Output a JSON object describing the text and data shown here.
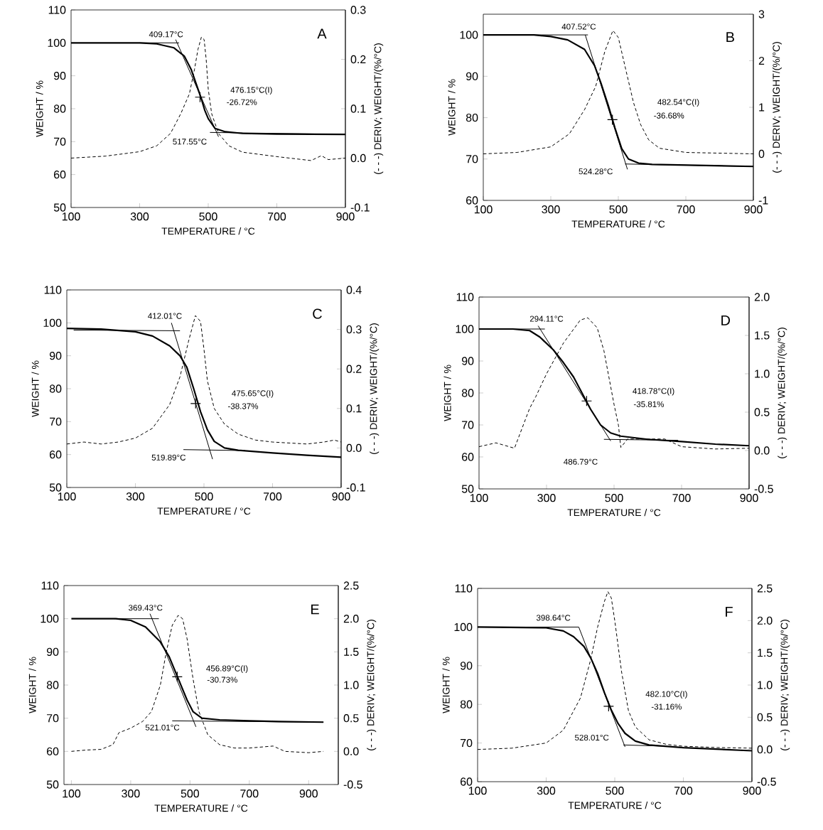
{
  "chart_data": [
    {
      "type": "line",
      "xlabel": "TEMPERATURE / °C",
      "ylabel": "WEIGHT / %",
      "y2label": "(- - -) DERIV; WEIGHT/(%/°C)",
      "xlim": [
        100,
        900
      ],
      "xticks": [
        100,
        300,
        500,
        700,
        900
      ],
      "ylim": [
        50,
        110
      ],
      "yticks": [
        50,
        60,
        70,
        80,
        90,
        100,
        110
      ],
      "y2lim": [
        -0.1,
        0.3
      ],
      "y2ticks": [
        -0.1,
        {
          "value": 0,
          "label": "0.0"
        },
        0.1,
        0.2,
        0.3
      ],
      "series": [
        {
          "color": "#000000",
          "line_style": "solid",
          "x": [
            100,
            200,
            300,
            350,
            400,
            430,
            450,
            470,
            480,
            490,
            500,
            520,
            550,
            600,
            700,
            900
          ],
          "values": [
            100,
            100,
            100,
            99.7,
            98.5,
            96,
            92,
            86,
            83,
            79.5,
            77,
            74,
            73,
            72.5,
            72.3,
            72.2
          ]
        },
        {
          "axis": "y2",
          "color": "#000000",
          "line_style": "dashed",
          "x": [
            100,
            200,
            300,
            350,
            390,
            420,
            445,
            460,
            470,
            480,
            488,
            494,
            500,
            510,
            530,
            560,
            600,
            700,
            800,
            830,
            850,
            900
          ],
          "values": [
            0,
            0.004,
            0.013,
            0.025,
            0.05,
            0.09,
            0.13,
            0.18,
            0.22,
            0.245,
            0.24,
            0.2,
            0.14,
            0.09,
            0.05,
            0.025,
            0.012,
            0.003,
            -0.005,
            0.005,
            -0.003,
            0
          ]
        },
        {
          "color": "#000000",
          "line_style": "solid",
          "x": [
            300,
            415
          ],
          "values": [
            100,
            100
          ]
        },
        {
          "color": "#000000",
          "line_style": "solid",
          "x": [
            405,
            530
          ],
          "values": [
            101,
            71.5
          ]
        },
        {
          "color": "#000000",
          "line_style": "solid",
          "x": [
            505,
            900
          ],
          "values": [
            72.8,
            72.2
          ]
        },
        {
          "type": "scatter",
          "marker": "cross",
          "color": "#000000",
          "x": [
            476.15
          ],
          "values": [
            83.5
          ]
        }
      ],
      "annotations": [
        "409.17°C",
        "476.15°C(I)",
        "-26.72%",
        "517.55°C",
        "A"
      ]
    },
    {
      "type": "line",
      "xlabel": "TEMPERATURE / °C",
      "ylabel": "WEIGHT / %",
      "y2label": "(- - -) DERIV; WEIGHT/(%/°C)",
      "xlim": [
        100,
        900
      ],
      "xticks": [
        100,
        300,
        500,
        700,
        900
      ],
      "ylim": [
        60,
        105
      ],
      "yticks": [
        60,
        70,
        80,
        90,
        100
      ],
      "y2lim": [
        -1,
        3
      ],
      "y2ticks": [
        -1,
        0,
        1,
        2,
        3
      ],
      "series": [
        {
          "color": "#000000",
          "line_style": "solid",
          "x": [
            100,
            250,
            300,
            350,
            400,
            430,
            450,
            470,
            490,
            510,
            530,
            560,
            600,
            900
          ],
          "values": [
            100,
            100,
            99.6,
            98.8,
            96.5,
            92.5,
            88,
            83,
            77.5,
            72.5,
            70,
            69,
            68.7,
            68.2
          ]
        },
        {
          "axis": "y2",
          "color": "#000000",
          "line_style": "dashed",
          "x": [
            100,
            200,
            300,
            355,
            400,
            433,
            460,
            484,
            500,
            524,
            545,
            566,
            590,
            622,
            700,
            900
          ],
          "values": [
            0,
            0.03,
            0.15,
            0.43,
            0.95,
            1.45,
            2.2,
            2.65,
            2.5,
            1.75,
            1.1,
            0.63,
            0.3,
            0.12,
            0.03,
            0
          ]
        },
        {
          "color": "#000000",
          "line_style": "solid",
          "x": [
            200,
            410
          ],
          "values": [
            100,
            100
          ]
        },
        {
          "color": "#000000",
          "line_style": "solid",
          "x": [
            402,
            527
          ],
          "values": [
            100,
            67.5
          ]
        },
        {
          "color": "#000000",
          "line_style": "solid",
          "x": [
            520,
            900
          ],
          "values": [
            68.8,
            68.2
          ]
        },
        {
          "type": "scatter",
          "marker": "cross",
          "color": "#000000",
          "x": [
            482.54
          ],
          "values": [
            79.5
          ]
        }
      ],
      "annotations": [
        "407.52°C",
        "482.54°C(I)",
        "-36.68%",
        "524.28°C",
        "B"
      ]
    },
    {
      "type": "line",
      "xlabel": "TEMPERATURE / °C",
      "ylabel": "WEIGHT / %",
      "y2label": "(- - -) DERIV; WEIGHT/(%/°C)",
      "xlim": [
        100,
        900
      ],
      "xticks": [
        100,
        300,
        500,
        700,
        900
      ],
      "ylim": [
        50,
        110
      ],
      "yticks": [
        50,
        60,
        70,
        80,
        90,
        100,
        110
      ],
      "y2lim": [
        -0.1,
        0.4
      ],
      "y2ticks": [
        -0.1,
        {
          "value": 0,
          "label": "0.0"
        },
        0.1,
        0.2,
        0.3,
        0.4
      ],
      "series": [
        {
          "color": "#000000",
          "line_style": "solid",
          "x": [
            100,
            200,
            300,
            350,
            400,
            430,
            450,
            470,
            490,
            510,
            530,
            560,
            600,
            700,
            800,
            900
          ],
          "values": [
            98.3,
            98.1,
            97.3,
            96,
            93,
            90,
            86.5,
            80,
            73,
            67.5,
            64,
            62,
            61.3,
            60.5,
            59.8,
            59.2
          ]
        },
        {
          "axis": "y2",
          "color": "#000000",
          "line_style": "dashed",
          "x": [
            100,
            150,
            200,
            250,
            300,
            350,
            400,
            430,
            455,
            475,
            490,
            500,
            510,
            530,
            560,
            600,
            650,
            700,
            800,
            850,
            880,
            900
          ],
          "values": [
            0.01,
            0.015,
            0.01,
            0.015,
            0.025,
            0.05,
            0.11,
            0.18,
            0.27,
            0.335,
            0.32,
            0.25,
            0.17,
            0.1,
            0.06,
            0.035,
            0.02,
            0.015,
            0.01,
            0.015,
            0.02,
            0.015
          ]
        },
        {
          "color": "#000000",
          "line_style": "solid",
          "x": [
            120,
            430
          ],
          "values": [
            97.8,
            97.6
          ]
        },
        {
          "color": "#000000",
          "line_style": "solid",
          "x": [
            405,
            525
          ],
          "values": [
            100,
            58.6
          ]
        },
        {
          "color": "#000000",
          "line_style": "solid",
          "x": [
            440,
            620
          ],
          "values": [
            61.5,
            61.2
          ]
        },
        {
          "type": "scatter",
          "marker": "cross",
          "color": "#000000",
          "x": [
            475.65
          ],
          "values": [
            75.5
          ]
        }
      ],
      "annotations": [
        "412.01°C",
        "475.65°C(I)",
        "-38.37%",
        "519.89°C",
        "C"
      ]
    },
    {
      "type": "line",
      "xlabel": "TEMPERATURE / °C",
      "ylabel": "WEIGHT / %",
      "y2label": "(- - -) DERIV; WEIGHT/(%/°C)",
      "xlim": [
        100,
        900
      ],
      "xticks": [
        100,
        300,
        500,
        700,
        900
      ],
      "ylim": [
        50,
        110
      ],
      "yticks": [
        50,
        60,
        70,
        80,
        90,
        100,
        110
      ],
      "y2lim": [
        -0.5,
        2.0
      ],
      "y2ticks": [
        -0.5,
        {
          "value": 0,
          "label": "0.0"
        },
        0.5,
        {
          "value": 1,
          "label": "1.0"
        },
        1.5,
        {
          "value": 2,
          "label": "2.0"
        }
      ],
      "series": [
        {
          "color": "#000000",
          "line_style": "solid",
          "x": [
            100,
            200,
            250,
            280,
            320,
            350,
            380,
            410,
            430,
            460,
            490,
            520,
            600,
            700,
            800,
            900
          ],
          "values": [
            100,
            100,
            99.5,
            97.5,
            93.5,
            89.5,
            85,
            79,
            75,
            70,
            67.5,
            66.5,
            65.5,
            64.8,
            64,
            63.5
          ]
        },
        {
          "axis": "y2",
          "color": "#000000",
          "line_style": "dashed",
          "x": [
            100,
            150,
            205,
            250,
            268,
            300,
            350,
            400,
            422,
            450,
            470,
            500,
            513,
            520,
            540,
            600,
            650,
            700,
            800,
            900
          ],
          "values": [
            0.05,
            0.1,
            0.03,
            0.55,
            0.7,
            1.0,
            1.4,
            1.7,
            1.73,
            1.6,
            1.3,
            0.6,
            0.33,
            0.04,
            0.15,
            0.15,
            0.15,
            0.05,
            0.02,
            0.03
          ]
        },
        {
          "color": "#000000",
          "line_style": "solid",
          "x": [
            200,
            295
          ],
          "values": [
            100,
            100
          ]
        },
        {
          "color": "#000000",
          "line_style": "solid",
          "x": [
            275,
            490
          ],
          "values": [
            101,
            65
          ]
        },
        {
          "color": "#000000",
          "line_style": "solid",
          "x": [
            470,
            690
          ],
          "values": [
            65.5,
            65.2
          ]
        },
        {
          "type": "scatter",
          "marker": "cross",
          "color": "#000000",
          "x": [
            418.78
          ],
          "values": [
            77.5
          ]
        }
      ],
      "annotations": [
        "294.11°C",
        "418.78°C(I)",
        "-35.81%",
        "486.79°C",
        "D"
      ]
    },
    {
      "type": "line",
      "xlabel": "TEMPERATURE / °C",
      "ylabel": "WEIGHT / %",
      "y2label": "(- - -) DERIV; WEIGHT/(%/°C)",
      "xlim": [
        75,
        1000
      ],
      "xticks": [
        100,
        300,
        500,
        700,
        900
      ],
      "ylim": [
        50,
        110
      ],
      "yticks": [
        50,
        60,
        70,
        80,
        90,
        100,
        110
      ],
      "y2lim": [
        -0.5,
        2.5
      ],
      "y2ticks": [
        -0.5,
        {
          "value": 0,
          "label": "0.0"
        },
        0.5,
        {
          "value": 1,
          "label": "1.0"
        },
        1.5,
        {
          "value": 2,
          "label": "2.0"
        },
        2.5
      ],
      "series": [
        {
          "color": "#000000",
          "line_style": "solid",
          "x": [
            100,
            250,
            300,
            350,
            400,
            430,
            460,
            490,
            510,
            540,
            600,
            700,
            800,
            950
          ],
          "values": [
            100,
            100,
            99.5,
            97.5,
            93,
            88.5,
            82,
            75.5,
            72,
            70,
            69.5,
            69.2,
            69,
            68.8
          ]
        },
        {
          "axis": "y2",
          "color": "#000000",
          "line_style": "dashed",
          "x": [
            100,
            150,
            200,
            240,
            260,
            300,
            340,
            370,
            400,
            420,
            440,
            460,
            475,
            490,
            510,
            530,
            560,
            600,
            650,
            700,
            780,
            820,
            900,
            950
          ],
          "values": [
            0,
            0.02,
            0.03,
            0.1,
            0.28,
            0.35,
            0.45,
            0.6,
            1.0,
            1.5,
            1.9,
            2.05,
            2.0,
            1.7,
            1.1,
            0.6,
            0.25,
            0.1,
            0.05,
            0.05,
            0.08,
            0,
            -0.02,
            0
          ]
        },
        {
          "color": "#000000",
          "line_style": "solid",
          "x": [
            245,
            395
          ],
          "values": [
            100,
            100
          ]
        },
        {
          "color": "#000000",
          "line_style": "solid",
          "x": [
            365,
            520
          ],
          "values": [
            101.5,
            67.4
          ]
        },
        {
          "color": "#000000",
          "line_style": "solid",
          "x": [
            440,
            950
          ],
          "values": [
            69.2,
            68.8
          ]
        },
        {
          "type": "scatter",
          "marker": "cross",
          "color": "#000000",
          "x": [
            456.89
          ],
          "values": [
            82.5
          ]
        }
      ],
      "annotations": [
        "369.43°C",
        "456.89°C(I)",
        "-30.73%",
        "521.01°C",
        "E"
      ]
    },
    {
      "type": "line",
      "xlabel": "TEMPERATURE / °C",
      "ylabel": "WEIGHT / %",
      "y2label": "(- - -) DERIV; WEIGHT/(%/°C)",
      "xlim": [
        100,
        900
      ],
      "xticks": [
        100,
        300,
        500,
        700,
        900
      ],
      "ylim": [
        60,
        110
      ],
      "yticks": [
        60,
        70,
        80,
        90,
        100,
        110
      ],
      "y2lim": [
        -0.5,
        2.5
      ],
      "y2ticks": [
        -0.5,
        {
          "value": 0,
          "label": "0.0"
        },
        0.5,
        {
          "value": 1,
          "label": "1.0"
        },
        1.5,
        {
          "value": 2,
          "label": "2.0"
        },
        2.5
      ],
      "series": [
        {
          "color": "#000000",
          "line_style": "solid",
          "x": [
            100,
            300,
            350,
            380,
            410,
            430,
            450,
            470,
            490,
            510,
            530,
            560,
            600,
            700,
            900
          ],
          "values": [
            100,
            99.8,
            99,
            97.5,
            95,
            92,
            88,
            83,
            78.5,
            75,
            72.5,
            70.5,
            69.5,
            68.8,
            68
          ]
        },
        {
          "axis": "y2",
          "color": "#000000",
          "line_style": "dashed",
          "x": [
            100,
            200,
            300,
            350,
            400,
            430,
            450,
            470,
            480,
            490,
            500,
            520,
            540,
            560,
            600,
            650,
            700,
            800,
            900
          ],
          "values": [
            0,
            0.02,
            0.1,
            0.3,
            0.8,
            1.4,
            1.9,
            2.3,
            2.45,
            2.35,
            2.0,
            1.2,
            0.6,
            0.35,
            0.15,
            0.08,
            0.05,
            0.03,
            0.02
          ]
        },
        {
          "color": "#000000",
          "line_style": "solid",
          "x": [
            100,
            395
          ],
          "values": [
            100,
            100
          ]
        },
        {
          "color": "#000000",
          "line_style": "solid",
          "x": [
            395,
            530
          ],
          "values": [
            100,
            69
          ]
        },
        {
          "color": "#000000",
          "line_style": "solid",
          "x": [
            525,
            640
          ],
          "values": [
            69.5,
            69.2
          ]
        },
        {
          "type": "scatter",
          "marker": "cross",
          "color": "#000000",
          "x": [
            482.1
          ],
          "values": [
            79.5
          ]
        }
      ],
      "annotations": [
        "398.64°C",
        "482.10°C(I)",
        "-31.16%",
        "528.01°C",
        "F"
      ]
    }
  ]
}
